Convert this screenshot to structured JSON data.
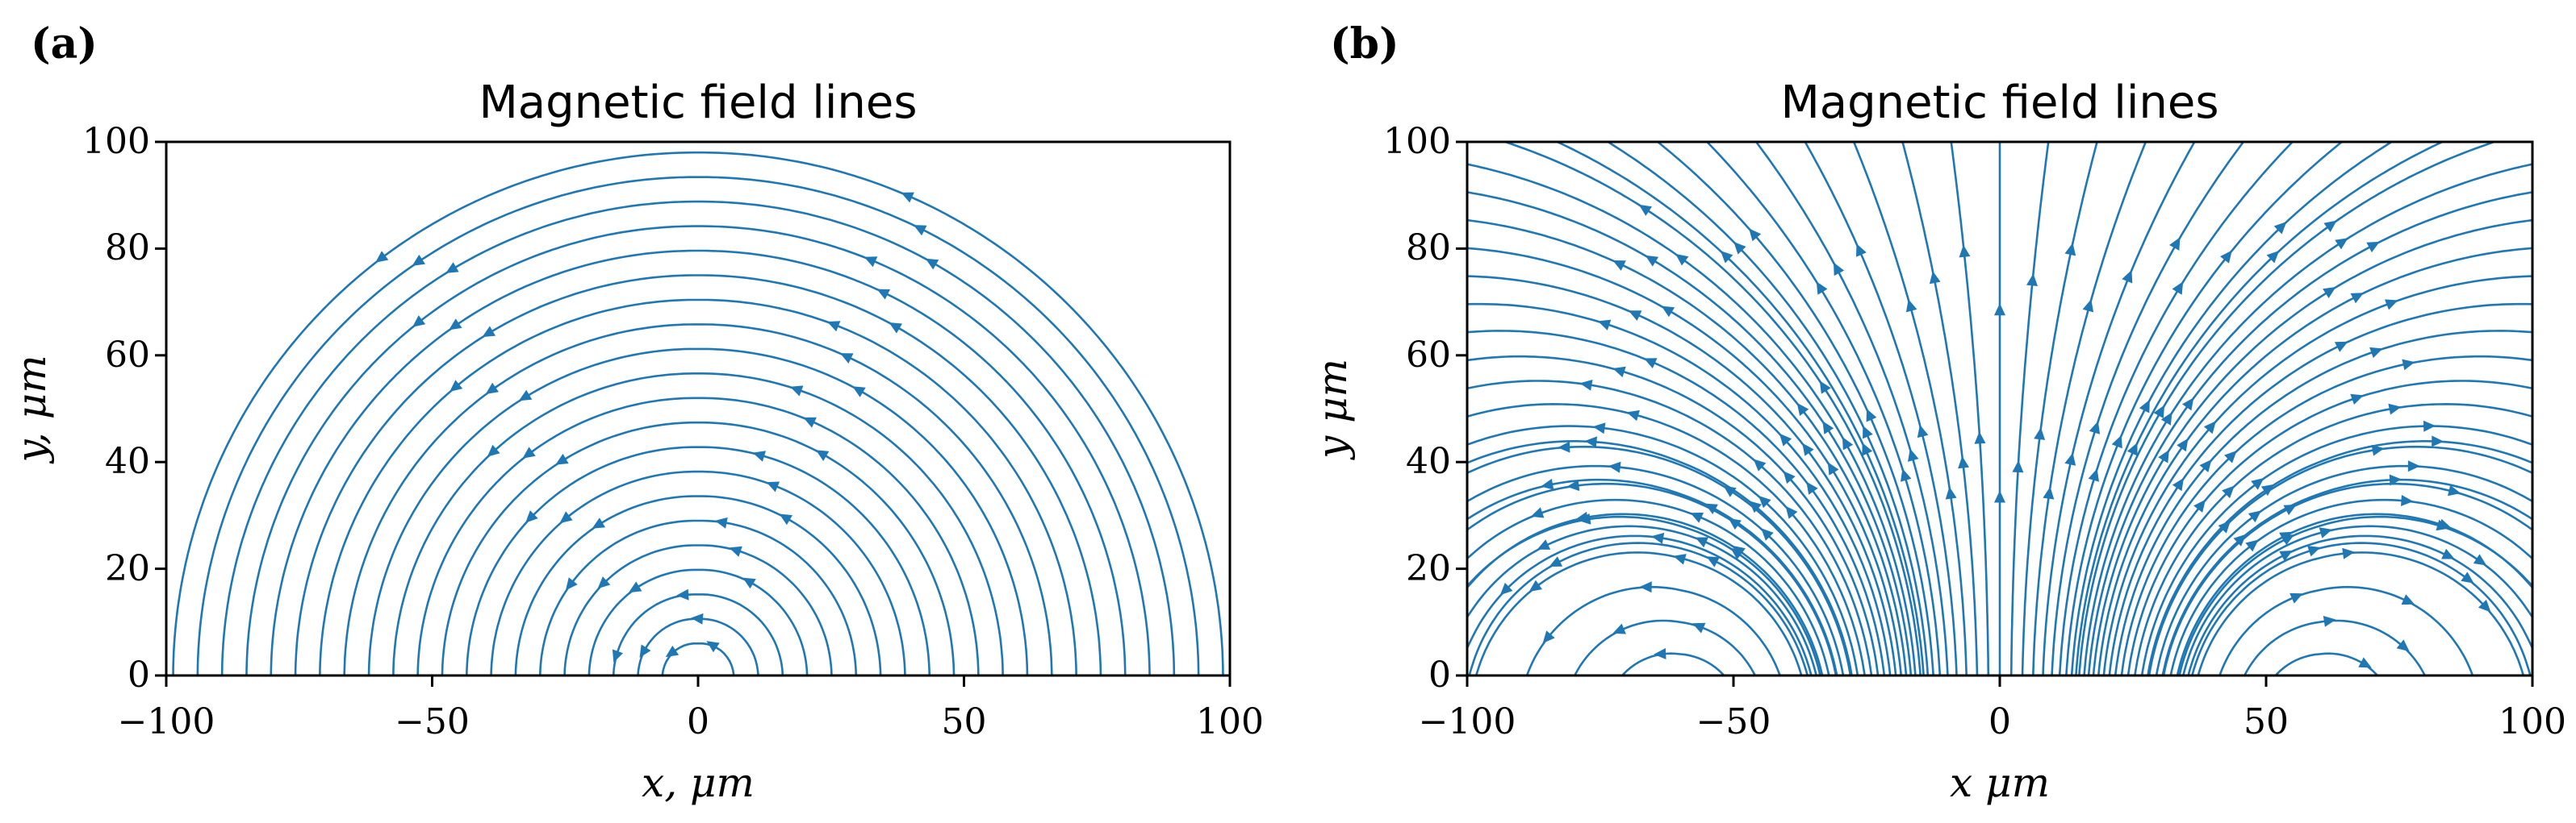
{
  "colors": {
    "stream": "#1f77b4",
    "axis": "#000000",
    "background": "#ffffff"
  },
  "chart_data": [
    {
      "type": "streamplot",
      "panel_label": "(a)",
      "title": "Magnetic field lines",
      "xlabel": "x, μm",
      "ylabel": "y, μm",
      "xlim": [
        -100,
        100
      ],
      "ylim": [
        0,
        100
      ],
      "xticks": [
        -100,
        -50,
        0,
        50,
        100
      ],
      "xtick_labels": [
        "−100",
        "−50",
        "0",
        "50",
        "100"
      ],
      "yticks": [
        0,
        20,
        40,
        60,
        80,
        100
      ],
      "ytick_labels": [
        "0",
        "20",
        "40",
        "60",
        "80",
        "100"
      ],
      "field": "loop",
      "grid": false
    },
    {
      "type": "streamplot",
      "panel_label": "(b)",
      "title": "Magnetic field lines",
      "xlabel": "x μm",
      "ylabel": "y μm",
      "xlim": [
        -100,
        100
      ],
      "ylim": [
        0,
        100
      ],
      "xticks": [
        -100,
        -50,
        0,
        50,
        100
      ],
      "xtick_labels": [
        "−100",
        "−50",
        "0",
        "50",
        "100"
      ],
      "yticks": [
        0,
        20,
        40,
        60,
        80,
        100
      ],
      "ytick_labels": [
        "0",
        "20",
        "40",
        "60",
        "80",
        "100"
      ],
      "field": "dipole",
      "grid": false
    }
  ]
}
